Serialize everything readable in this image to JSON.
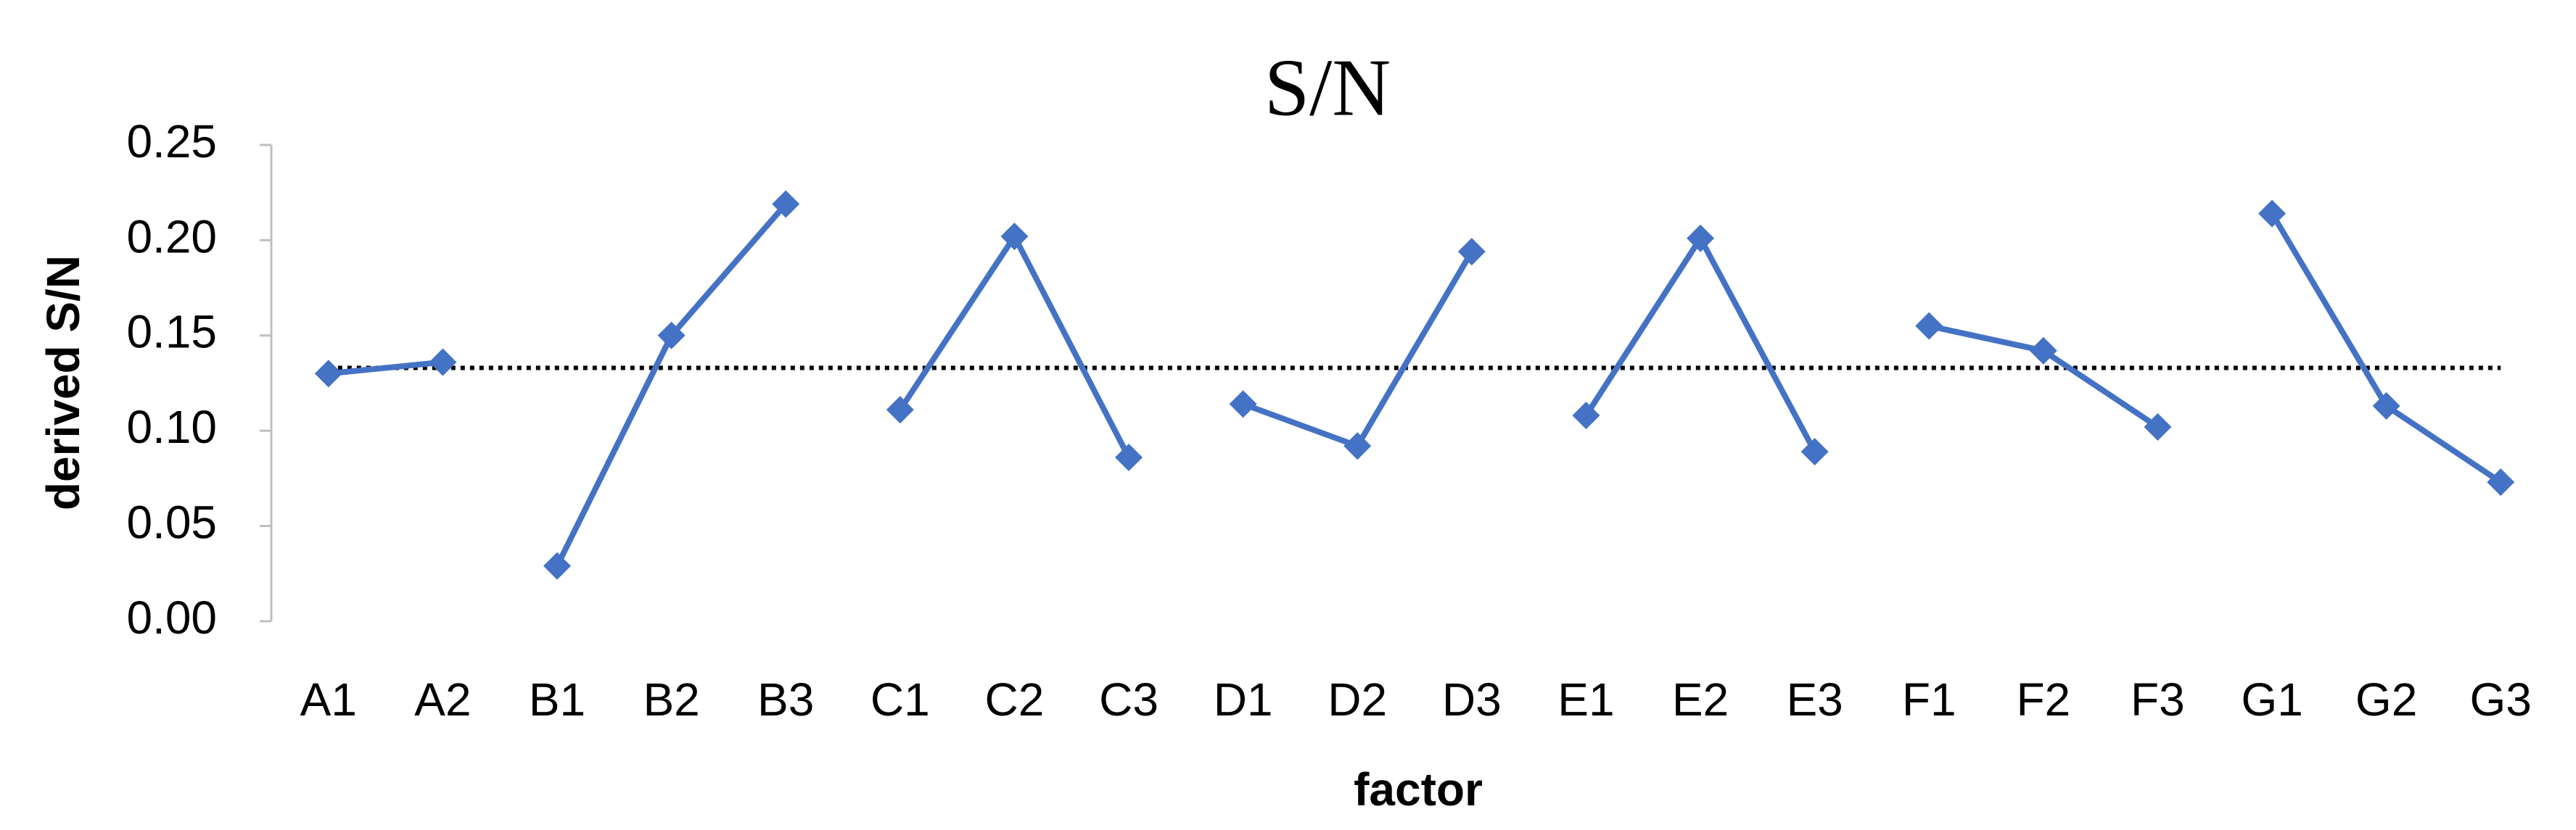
{
  "chart_data": {
    "type": "line",
    "title": "S/N",
    "x_label": "factor",
    "y_label": "derived S/N",
    "categories": [
      "A1",
      "A2",
      "B1",
      "B2",
      "B3",
      "C1",
      "C2",
      "C3",
      "D1",
      "D2",
      "D3",
      "E1",
      "E2",
      "E3",
      "F1",
      "F2",
      "F3",
      "G1",
      "G2",
      "G3"
    ],
    "series": [
      {
        "color": "#4472c4",
        "values": [
          0.13,
          0.136,
          null,
          null,
          null,
          null,
          null,
          null,
          null,
          null,
          null,
          null,
          null,
          null,
          null,
          null,
          null,
          null,
          null,
          null
        ]
      },
      {
        "color": "#4472c4",
        "values": [
          null,
          null,
          0.029,
          0.15,
          0.219,
          null,
          null,
          null,
          null,
          null,
          null,
          null,
          null,
          null,
          null,
          null,
          null,
          null,
          null,
          null
        ]
      },
      {
        "color": "#4472c4",
        "values": [
          null,
          null,
          null,
          null,
          null,
          0.111,
          0.202,
          0.086,
          null,
          null,
          null,
          null,
          null,
          null,
          null,
          null,
          null,
          null,
          null,
          null
        ]
      },
      {
        "color": "#4472c4",
        "values": [
          null,
          null,
          null,
          null,
          null,
          null,
          null,
          null,
          0.114,
          0.092,
          0.194,
          null,
          null,
          null,
          null,
          null,
          null,
          null,
          null,
          null
        ]
      },
      {
        "color": "#4472c4",
        "values": [
          null,
          null,
          null,
          null,
          null,
          null,
          null,
          null,
          null,
          null,
          null,
          0.108,
          0.201,
          0.089,
          null,
          null,
          null,
          null,
          null,
          null
        ]
      },
      {
        "color": "#4472c4",
        "values": [
          null,
          null,
          null,
          null,
          null,
          null,
          null,
          null,
          null,
          null,
          null,
          null,
          null,
          null,
          0.155,
          0.142,
          0.102,
          null,
          null,
          null
        ]
      },
      {
        "color": "#4472c4",
        "values": [
          null,
          null,
          null,
          null,
          null,
          null,
          null,
          null,
          null,
          null,
          null,
          null,
          null,
          null,
          null,
          null,
          null,
          0.214,
          0.113,
          0.073
        ]
      }
    ],
    "reference_line": 0.133,
    "ylim": [
      0,
      0.25
    ],
    "yticks": [
      {
        "value": 0,
        "label": "0.00"
      },
      {
        "value": 0.05,
        "label": "0.05"
      },
      {
        "value": 0.1,
        "label": "0.10"
      },
      {
        "value": 0.15,
        "label": "0.15"
      },
      {
        "value": 0.2,
        "label": "0.20"
      },
      {
        "value": 0.25,
        "label": "0.25"
      }
    ],
    "grid": false
  }
}
